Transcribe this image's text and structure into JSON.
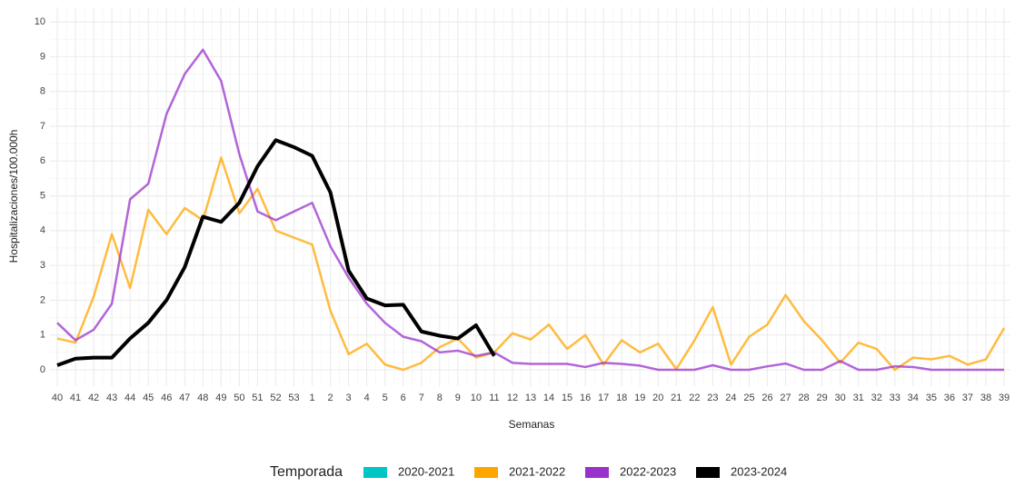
{
  "chart_data": {
    "type": "line",
    "x_label": "Semanas",
    "y_label": "Hospitalizaciones/100.000h",
    "legend_title": "Temporada",
    "legend_position": "bottom",
    "grid": true,
    "categories": [
      "40",
      "41",
      "42",
      "43",
      "44",
      "45",
      "46",
      "47",
      "48",
      "49",
      "50",
      "51",
      "52",
      "53",
      "1",
      "2",
      "3",
      "4",
      "5",
      "6",
      "7",
      "8",
      "9",
      "10",
      "11",
      "12",
      "13",
      "14",
      "15",
      "16",
      "17",
      "18",
      "19",
      "20",
      "21",
      "22",
      "23",
      "24",
      "25",
      "26",
      "27",
      "28",
      "29",
      "30",
      "31",
      "32",
      "33",
      "34",
      "35",
      "36",
      "37",
      "38",
      "39"
    ],
    "ylim": [
      -0.47,
      10.42
    ],
    "yticks": [
      0,
      1,
      2,
      3,
      4,
      5,
      6,
      7,
      8,
      9,
      10
    ],
    "series": [
      {
        "name": "2020-2021",
        "color": "#00c5c5",
        "values": [
          null,
          null,
          null,
          null,
          null,
          null,
          null,
          null,
          null,
          null,
          null,
          null,
          null,
          null,
          null,
          null,
          null,
          null,
          null,
          null,
          null,
          null,
          null,
          null,
          null,
          null,
          null,
          null,
          null,
          null,
          null,
          null,
          null,
          null,
          null,
          null,
          null,
          null,
          null,
          null,
          null,
          null,
          null,
          null,
          null,
          null,
          null,
          null,
          null,
          null,
          null,
          null,
          null
        ]
      },
      {
        "name": "2021-2022",
        "color": "#ffa500",
        "values": [
          0.9,
          0.78,
          2.1,
          3.9,
          2.35,
          4.6,
          3.9,
          4.65,
          4.3,
          6.1,
          4.5,
          5.2,
          4.0,
          3.8,
          3.6,
          1.7,
          0.45,
          0.75,
          0.15,
          0.0,
          0.2,
          0.65,
          0.9,
          0.35,
          0.5,
          1.05,
          0.87,
          1.3,
          0.6,
          1.0,
          0.15,
          0.85,
          0.5,
          0.75,
          0.02,
          0.85,
          1.8,
          0.15,
          0.95,
          1.3,
          2.15,
          1.4,
          0.85,
          0.2,
          0.78,
          0.6,
          0.0,
          0.35,
          0.3,
          0.4,
          0.15,
          0.3,
          1.2
        ]
      },
      {
        "name": "2022-2023",
        "color": "#9932cc",
        "values": [
          1.35,
          0.85,
          1.15,
          1.9,
          4.9,
          5.35,
          7.35,
          8.5,
          9.2,
          8.3,
          6.2,
          4.55,
          4.3,
          4.55,
          4.8,
          3.55,
          2.65,
          1.9,
          1.35,
          0.95,
          0.82,
          0.5,
          0.55,
          0.4,
          0.5,
          0.2,
          0.17,
          0.17,
          0.17,
          0.08,
          0.2,
          0.17,
          0.12,
          0,
          0,
          0,
          0.13,
          0,
          0,
          0.1,
          0.18,
          0,
          0,
          0.25,
          0,
          0,
          0.1,
          0.08,
          0,
          0,
          0,
          0,
          0
        ]
      },
      {
        "name": "2023-2024",
        "color": "#000000",
        "values": [
          0.13,
          0.32,
          0.35,
          0.35,
          0.9,
          1.35,
          2.0,
          2.95,
          4.4,
          4.25,
          4.8,
          5.85,
          6.6,
          6.4,
          6.15,
          5.1,
          2.85,
          2.05,
          1.85,
          1.87,
          1.1,
          0.98,
          0.9,
          1.28,
          0.4,
          null,
          null,
          null,
          null,
          null,
          null,
          null,
          null,
          null,
          null,
          null,
          null,
          null,
          null,
          null,
          null,
          null,
          null,
          null,
          null,
          null,
          null,
          null,
          null,
          null,
          null,
          null,
          null
        ]
      }
    ]
  }
}
